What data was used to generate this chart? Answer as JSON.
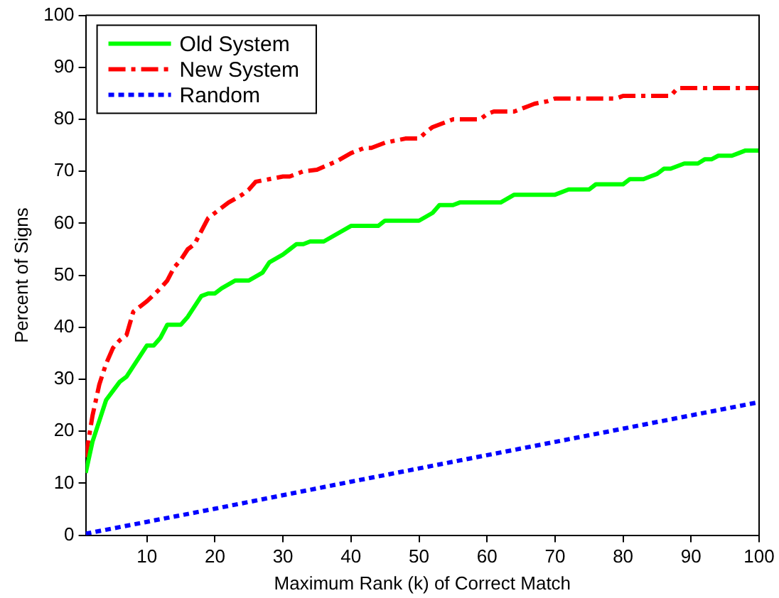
{
  "chart_data": {
    "type": "line",
    "xlabel": "Maximum Rank (k) of Correct Match",
    "ylabel": "Percent of Signs",
    "xlim": [
      1,
      100
    ],
    "xticks": [
      10,
      20,
      30,
      40,
      50,
      60,
      70,
      80,
      90,
      100
    ],
    "ylim": [
      0,
      100
    ],
    "yticks": [
      0,
      10,
      20,
      30,
      40,
      50,
      60,
      70,
      80,
      90,
      100
    ],
    "grid": false,
    "legend": "top left",
    "marker": "none",
    "series": [
      {
        "name": "Old System",
        "color": "#00ff00",
        "line_style": "solid",
        "x": [
          1,
          2,
          3,
          4,
          6,
          7,
          9,
          10,
          11,
          12,
          13,
          15,
          16,
          18,
          19,
          20,
          21,
          23,
          25,
          27,
          28,
          30,
          31,
          32,
          33,
          34,
          36,
          40,
          44,
          45,
          50,
          52,
          53,
          55,
          56,
          62,
          64,
          70,
          72,
          75,
          76,
          80,
          81,
          83,
          84,
          85,
          86,
          87,
          89,
          91,
          92,
          93,
          94,
          96,
          97,
          98,
          100
        ],
        "values": [
          12,
          18,
          22,
          26,
          29.5,
          30.5,
          34.5,
          36.5,
          36.5,
          38,
          40.5,
          40.5,
          42,
          46,
          46.5,
          46.5,
          47.5,
          49,
          49,
          50.5,
          52.5,
          54,
          55,
          56,
          56,
          56.5,
          56.5,
          59.5,
          59.5,
          60.5,
          60.5,
          62,
          63.5,
          63.5,
          64,
          64,
          65.5,
          65.5,
          66.5,
          66.5,
          67.5,
          67.5,
          68.5,
          68.5,
          69,
          69.5,
          70.5,
          70.5,
          71.5,
          71.5,
          72.3,
          72.3,
          73,
          73,
          73.5,
          74,
          74
        ]
      },
      {
        "name": "New System",
        "color": "#ff0000",
        "line_style": "dashed",
        "x": [
          1,
          2,
          3,
          4,
          5,
          6,
          7,
          8,
          9,
          10,
          12,
          13,
          14,
          15,
          16,
          17,
          18,
          19,
          20,
          22,
          24,
          25,
          26,
          28,
          30,
          31,
          33,
          35,
          38,
          40,
          42,
          43,
          45,
          48,
          50,
          51,
          52,
          54,
          55,
          59,
          60,
          61,
          64,
          66,
          67,
          69,
          70,
          73,
          79,
          80,
          87,
          88,
          100
        ],
        "values": [
          15,
          23,
          29,
          33,
          36,
          37.5,
          38.5,
          43,
          44,
          45,
          47.5,
          49,
          51.5,
          53,
          55,
          56,
          58.5,
          61,
          62,
          64,
          65.5,
          66.5,
          68,
          68.5,
          69,
          69,
          70,
          70.3,
          72,
          73.5,
          74.5,
          74.5,
          75.5,
          76.3,
          76.3,
          77.5,
          78.5,
          79.5,
          80,
          80,
          81,
          81.5,
          81.5,
          82.5,
          83,
          83.5,
          84,
          84,
          84,
          84.5,
          84.5,
          86,
          86
        ]
      },
      {
        "name": "Random",
        "color": "#0000ff",
        "line_style": "dotted",
        "x": [
          1,
          20,
          40,
          60,
          80,
          100
        ],
        "values": [
          0.3,
          5.1,
          10.3,
          15.4,
          20.5,
          25.6
        ]
      }
    ]
  }
}
